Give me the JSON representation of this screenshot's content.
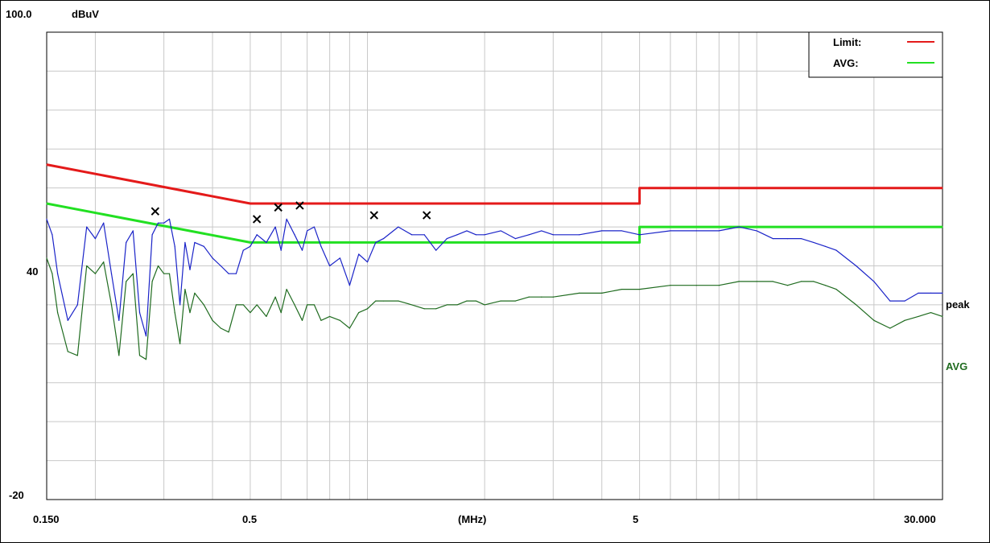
{
  "chart_data": {
    "type": "line",
    "title": "",
    "xlabel": "(MHz)",
    "ylabel": "dBuV",
    "xscale": "log",
    "xlim": [
      0.15,
      30
    ],
    "ylim": [
      -20,
      100
    ],
    "grid": true,
    "legend_position": "top-right",
    "y_tick_labels": [
      "100.0",
      "40",
      "-20"
    ],
    "x_tick_labels": [
      "0.150",
      "0.5",
      "5",
      "30.000"
    ],
    "series": [
      {
        "name": "Limit:",
        "role": "legend",
        "color": "#e41a1a",
        "x": [
          0.15,
          0.5,
          5,
          5,
          30
        ],
        "y": [
          66,
          56,
          56,
          60,
          60
        ]
      },
      {
        "name": "AVG:",
        "role": "legend",
        "color": "#22e022",
        "x": [
          0.15,
          0.5,
          5,
          5,
          30
        ],
        "y": [
          56,
          46,
          46,
          50,
          50
        ]
      },
      {
        "name": "peak",
        "role": "trace",
        "color": "#1a23c8",
        "x": [
          0.15,
          0.155,
          0.16,
          0.17,
          0.18,
          0.19,
          0.2,
          0.21,
          0.22,
          0.23,
          0.24,
          0.25,
          0.26,
          0.27,
          0.28,
          0.29,
          0.3,
          0.31,
          0.32,
          0.33,
          0.34,
          0.35,
          0.36,
          0.38,
          0.4,
          0.42,
          0.44,
          0.46,
          0.48,
          0.5,
          0.52,
          0.55,
          0.58,
          0.6,
          0.62,
          0.65,
          0.68,
          0.7,
          0.73,
          0.76,
          0.8,
          0.85,
          0.9,
          0.95,
          1.0,
          1.05,
          1.1,
          1.2,
          1.3,
          1.4,
          1.5,
          1.6,
          1.7,
          1.8,
          1.9,
          2.0,
          2.2,
          2.4,
          2.6,
          2.8,
          3.0,
          3.5,
          4.0,
          4.5,
          5.0,
          6.0,
          7.0,
          8.0,
          9.0,
          10.0,
          11.0,
          12.0,
          13.0,
          14.0,
          15.0,
          16.0,
          18.0,
          20.0,
          22.0,
          24.0,
          26.0,
          28.0,
          30.0
        ],
        "y": [
          52,
          48,
          38,
          26,
          30,
          50,
          47,
          51,
          38,
          26,
          46,
          49,
          28,
          22,
          48,
          51,
          51,
          52,
          45,
          30,
          46,
          39,
          46,
          45,
          42,
          40,
          38,
          38,
          44,
          45,
          48,
          46,
          50,
          44,
          52,
          48,
          44,
          49,
          50,
          45,
          40,
          42,
          35,
          43,
          41,
          46,
          47,
          50,
          48,
          48,
          44,
          47,
          48,
          49,
          48,
          48,
          49,
          47,
          48,
          49,
          48,
          48,
          49,
          49,
          48,
          49,
          49,
          49,
          50,
          49,
          47,
          47,
          47,
          46,
          45,
          44,
          40,
          36,
          31,
          31,
          33,
          33,
          33
        ]
      },
      {
        "name": "AVG",
        "role": "trace",
        "color": "#1f6b1f",
        "x": [
          0.15,
          0.155,
          0.16,
          0.17,
          0.18,
          0.19,
          0.2,
          0.21,
          0.22,
          0.23,
          0.24,
          0.25,
          0.26,
          0.27,
          0.28,
          0.29,
          0.3,
          0.31,
          0.32,
          0.33,
          0.34,
          0.35,
          0.36,
          0.38,
          0.4,
          0.42,
          0.44,
          0.46,
          0.48,
          0.5,
          0.52,
          0.55,
          0.58,
          0.6,
          0.62,
          0.65,
          0.68,
          0.7,
          0.73,
          0.76,
          0.8,
          0.85,
          0.9,
          0.95,
          1.0,
          1.05,
          1.1,
          1.2,
          1.3,
          1.4,
          1.5,
          1.6,
          1.7,
          1.8,
          1.9,
          2.0,
          2.2,
          2.4,
          2.6,
          2.8,
          3.0,
          3.5,
          4.0,
          4.5,
          5.0,
          6.0,
          7.0,
          8.0,
          9.0,
          10.0,
          11.0,
          12.0,
          13.0,
          14.0,
          15.0,
          16.0,
          18.0,
          20.0,
          22.0,
          24.0,
          26.0,
          28.0,
          30.0
        ],
        "y": [
          42,
          38,
          28,
          18,
          17,
          40,
          38,
          41,
          30,
          17,
          36,
          38,
          17,
          16,
          36,
          40,
          38,
          38,
          28,
          20,
          34,
          28,
          33,
          30,
          26,
          24,
          23,
          30,
          30,
          28,
          30,
          27,
          32,
          28,
          34,
          30,
          26,
          30,
          30,
          26,
          27,
          26,
          24,
          28,
          29,
          31,
          31,
          31,
          30,
          29,
          29,
          30,
          30,
          31,
          31,
          30,
          31,
          31,
          32,
          32,
          32,
          33,
          33,
          34,
          34,
          35,
          35,
          35,
          36,
          36,
          36,
          35,
          36,
          36,
          35,
          34,
          30,
          26,
          24,
          26,
          27,
          28,
          27
        ]
      }
    ],
    "markers": {
      "symbol": "x",
      "x": [
        0.285,
        0.52,
        0.59,
        0.67,
        1.04,
        1.42
      ],
      "y": [
        54,
        52,
        55,
        55.5,
        53,
        53
      ]
    }
  }
}
